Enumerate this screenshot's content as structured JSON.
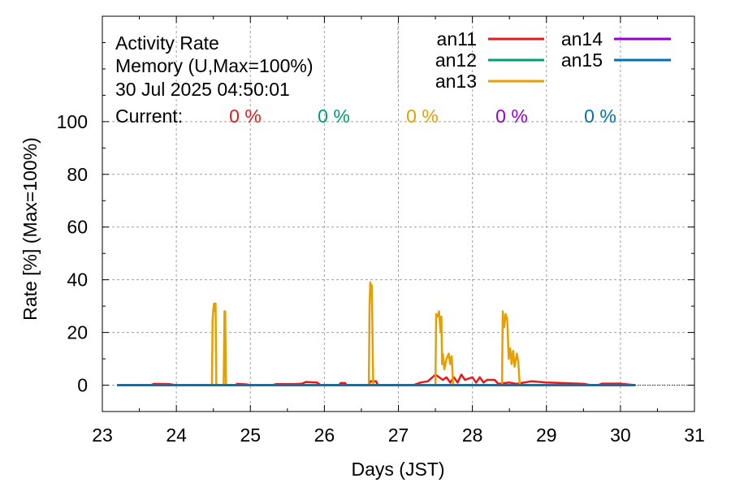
{
  "chart_data": {
    "type": "line",
    "title_lines": [
      "Activity Rate",
      "Memory (U,Max=100%)",
      "30 Jul 2025 04:50:01"
    ],
    "current_label": "Current:",
    "current_values": [
      "0 %",
      "0 %",
      "0 %",
      "0 %",
      "0 %"
    ],
    "xlabel": "Days (JST)",
    "ylabel": "Rate [%]  (Max=100%)",
    "xlim": [
      23,
      31
    ],
    "ylim": [
      -10,
      140
    ],
    "x_ticks": [
      "23",
      "24",
      "25",
      "26",
      "27",
      "28",
      "29",
      "30",
      "31"
    ],
    "y_ticks": [
      "0",
      "20",
      "40",
      "60",
      "80",
      "100"
    ],
    "grid": true,
    "legend_placement": "top-right",
    "series": [
      {
        "name": "an11",
        "color": "#e41a1c",
        "points": [
          [
            23.2,
            0
          ],
          [
            23.65,
            0
          ],
          [
            23.7,
            0.5
          ],
          [
            23.9,
            0.4
          ],
          [
            24.0,
            0
          ],
          [
            24.8,
            0
          ],
          [
            24.82,
            0.5
          ],
          [
            24.95,
            0.3
          ],
          [
            25.0,
            0
          ],
          [
            25.3,
            0
          ],
          [
            25.35,
            0.4
          ],
          [
            25.6,
            0.4
          ],
          [
            25.7,
            0.6
          ],
          [
            25.75,
            1.2
          ],
          [
            25.9,
            1.0
          ],
          [
            25.95,
            0
          ],
          [
            26.2,
            0
          ],
          [
            26.22,
            0.8
          ],
          [
            26.28,
            0.8
          ],
          [
            26.3,
            0
          ],
          [
            26.6,
            0
          ],
          [
            26.62,
            1.5
          ],
          [
            26.7,
            1.5
          ],
          [
            26.72,
            0
          ],
          [
            27.2,
            0
          ],
          [
            27.3,
            1.0
          ],
          [
            27.4,
            1.5
          ],
          [
            27.5,
            4
          ],
          [
            27.6,
            2
          ],
          [
            27.65,
            3
          ],
          [
            27.7,
            1
          ],
          [
            27.75,
            3
          ],
          [
            27.8,
            1
          ],
          [
            27.85,
            4
          ],
          [
            27.9,
            2
          ],
          [
            28.0,
            3
          ],
          [
            28.05,
            1
          ],
          [
            28.1,
            3
          ],
          [
            28.15,
            1
          ],
          [
            28.2,
            2
          ],
          [
            28.3,
            2
          ],
          [
            28.35,
            0.5
          ],
          [
            28.5,
            1
          ],
          [
            28.6,
            0.5
          ],
          [
            28.8,
            1.5
          ],
          [
            29.0,
            1.0
          ],
          [
            29.2,
            0.8
          ],
          [
            29.5,
            0.5
          ],
          [
            29.6,
            0
          ],
          [
            29.7,
            0
          ],
          [
            29.75,
            0.6
          ],
          [
            30.0,
            0.6
          ],
          [
            30.1,
            0.3
          ],
          [
            30.2,
            0
          ]
        ]
      },
      {
        "name": "an12",
        "color": "#009e73",
        "points": [
          [
            23.2,
            0
          ],
          [
            30.2,
            0
          ]
        ]
      },
      {
        "name": "an13",
        "color": "#e69f00",
        "points": [
          [
            23.2,
            0
          ],
          [
            24.48,
            0
          ],
          [
            24.49,
            25
          ],
          [
            24.5,
            29
          ],
          [
            24.51,
            31
          ],
          [
            24.52,
            28
          ],
          [
            24.53,
            31
          ],
          [
            24.54,
            0
          ],
          [
            24.64,
            0
          ],
          [
            24.65,
            28
          ],
          [
            24.66,
            28
          ],
          [
            24.67,
            0
          ],
          [
            26.6,
            0
          ],
          [
            26.61,
            30
          ],
          [
            26.62,
            39
          ],
          [
            26.63,
            36
          ],
          [
            26.64,
            38
          ],
          [
            26.65,
            20
          ],
          [
            26.66,
            0
          ],
          [
            27.5,
            0
          ],
          [
            27.51,
            27
          ],
          [
            27.53,
            26
          ],
          [
            27.55,
            28
          ],
          [
            27.57,
            20
          ],
          [
            27.58,
            26
          ],
          [
            27.59,
            8
          ],
          [
            27.6,
            12
          ],
          [
            27.62,
            6
          ],
          [
            27.65,
            10
          ],
          [
            27.68,
            12
          ],
          [
            27.7,
            8
          ],
          [
            27.72,
            11
          ],
          [
            27.74,
            0
          ],
          [
            28.4,
            0
          ],
          [
            28.41,
            28
          ],
          [
            28.43,
            22
          ],
          [
            28.45,
            27
          ],
          [
            28.47,
            25
          ],
          [
            28.49,
            10
          ],
          [
            28.51,
            14
          ],
          [
            28.53,
            8
          ],
          [
            28.55,
            13
          ],
          [
            28.57,
            7
          ],
          [
            28.6,
            12
          ],
          [
            28.62,
            9
          ],
          [
            28.64,
            0
          ],
          [
            30.2,
            0
          ]
        ]
      },
      {
        "name": "an14",
        "color": "#9400d3",
        "points": [
          [
            23.2,
            0
          ],
          [
            30.2,
            0
          ]
        ]
      },
      {
        "name": "an15",
        "color": "#0072b2",
        "points": [
          [
            23.2,
            0
          ],
          [
            30.2,
            0
          ]
        ]
      }
    ]
  }
}
